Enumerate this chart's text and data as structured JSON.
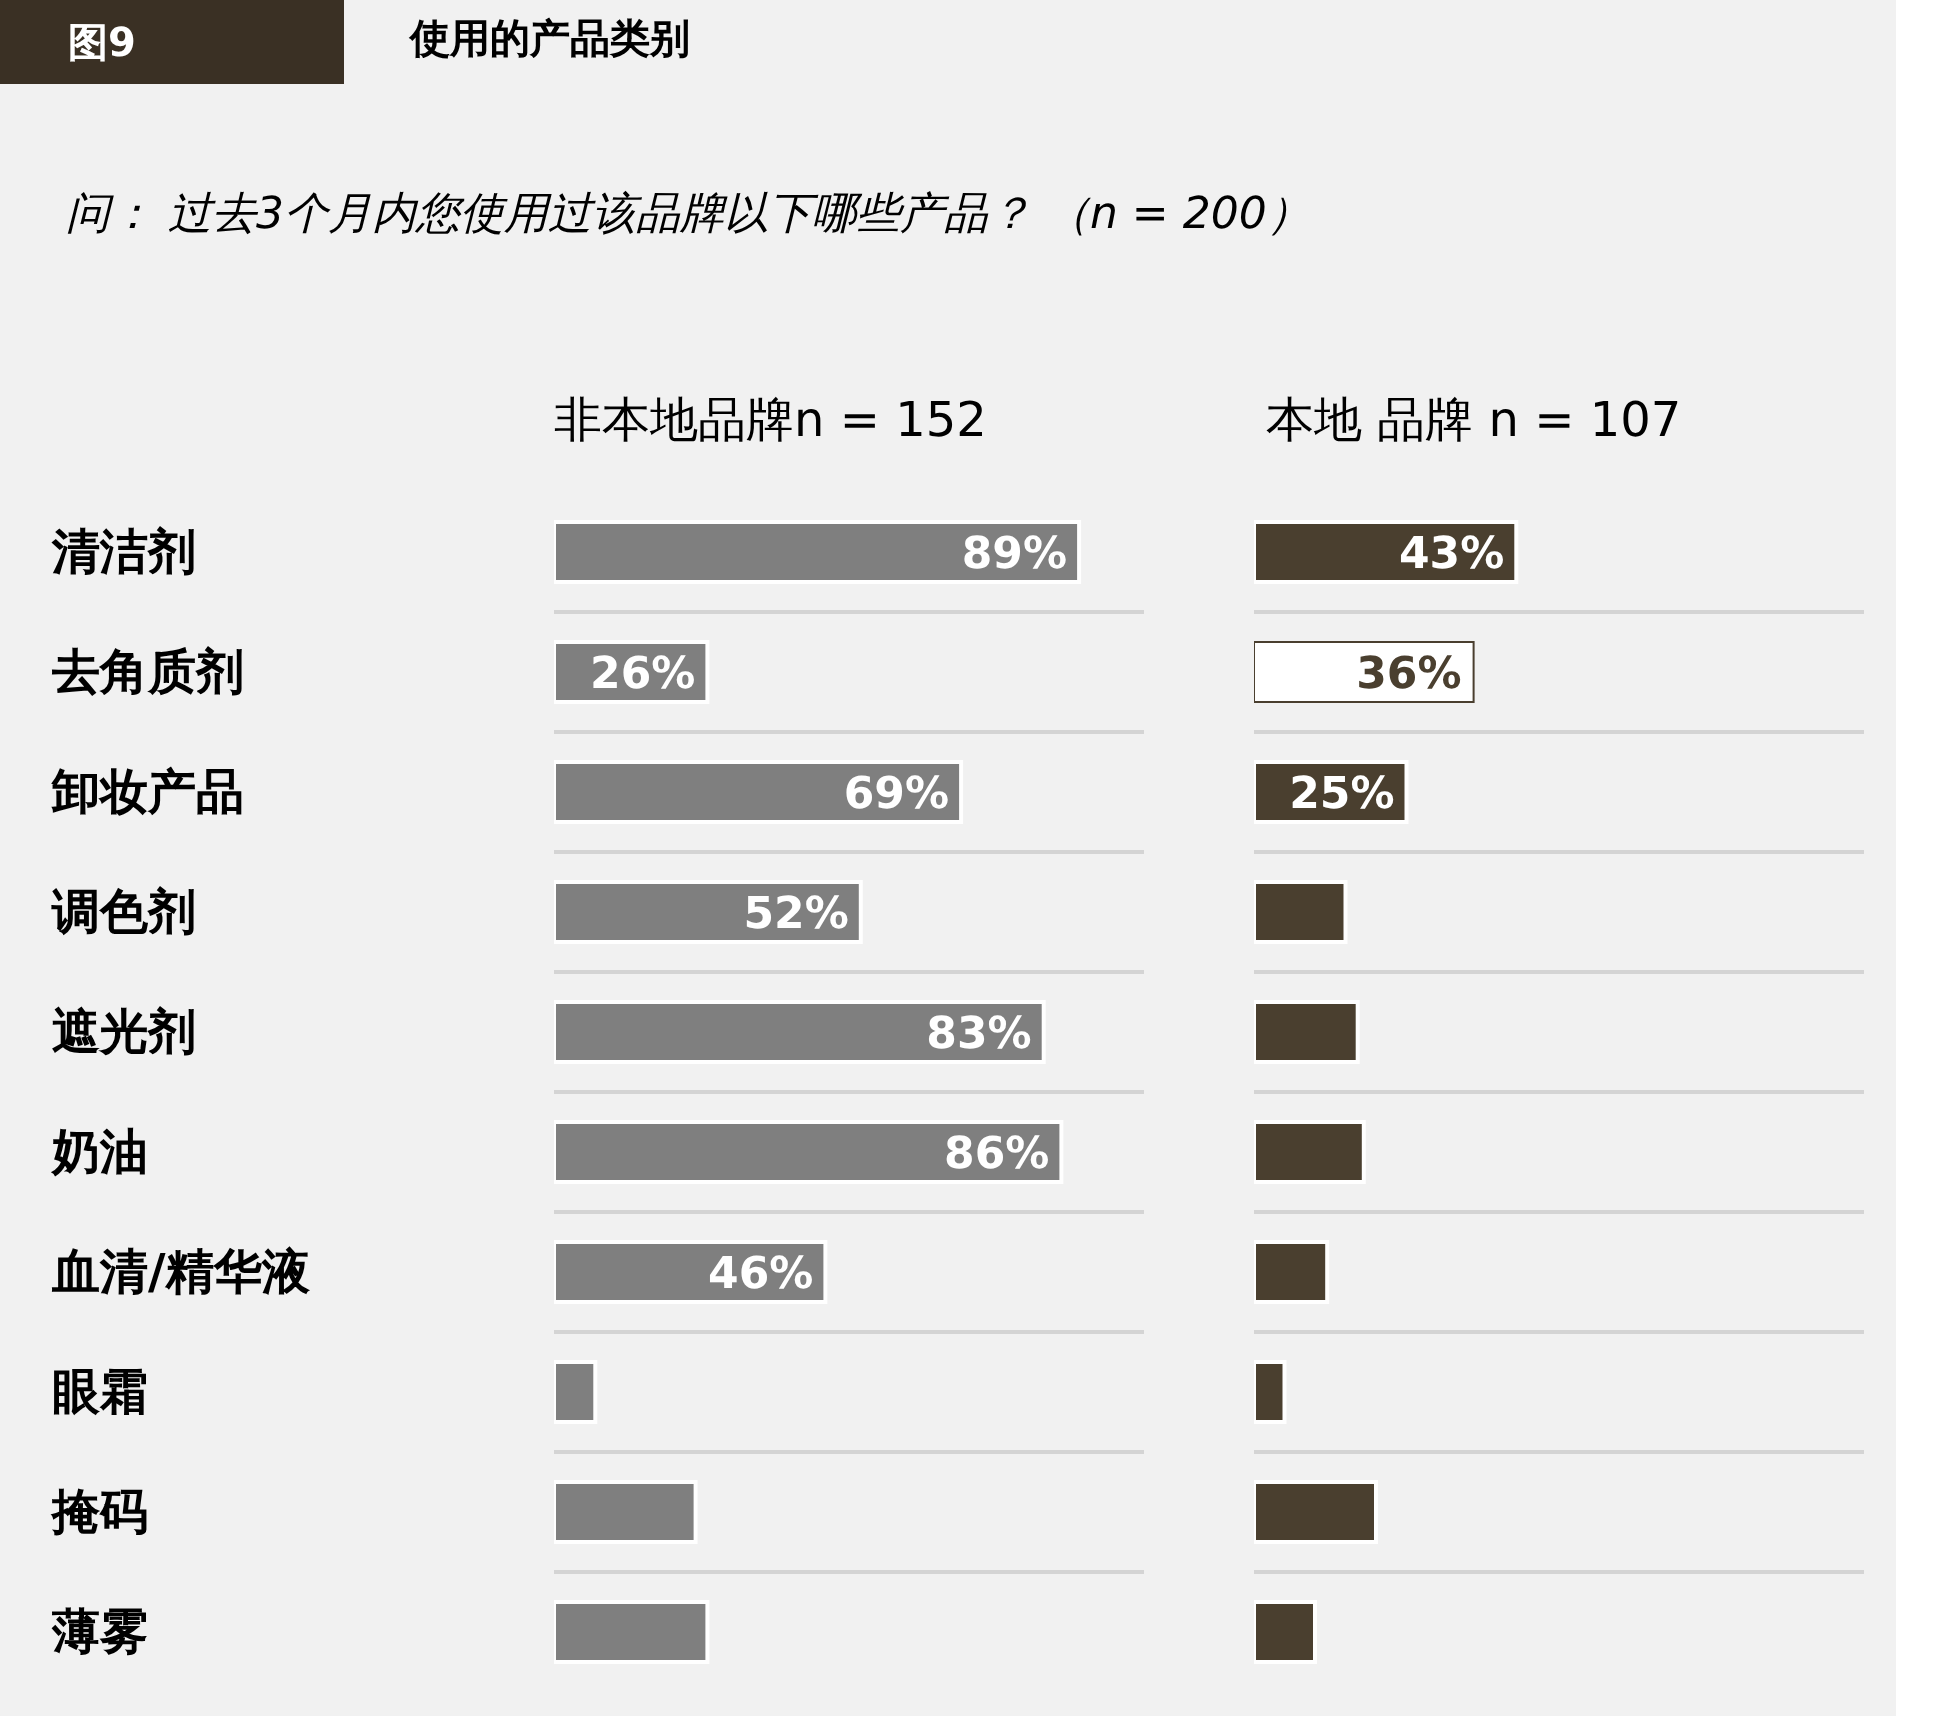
{
  "chart_data": [
    {
      "type": "bar",
      "orientation": "horizontal",
      "title": "使用的产品类别",
      "annotations": [
        "图9",
        "问： 过去3个月内您使用过该品牌以下哪些产品？ （n = 200）"
      ],
      "subtitle": "非本地品牌n = 152",
      "categories": [
        "清洁剂",
        "去角质剂",
        "卸妆产品",
        "调色剂",
        "遮光剂",
        "奶油",
        "血清/精华液",
        "眼霜",
        "掩码",
        "薄雾"
      ],
      "values": [
        89,
        26,
        69,
        52,
        83,
        86,
        46,
        7,
        24,
        26
      ],
      "colors": [
        "#7f7f7f",
        "#7f7f7f",
        "#7f7f7f",
        "#7f7f7f",
        "#7f7f7f",
        "#7f7f7f",
        "#7f7f7f",
        "#7f7f7f",
        "#7f7f7f",
        "#7f7f7f"
      ],
      "value_labels": [
        "89%",
        "26%",
        "69%",
        "52%",
        "83%",
        "86%",
        "46%",
        null,
        null,
        null
      ],
      "xlim": [
        0,
        100
      ],
      "grid": "y",
      "tick_labels": "y"
    },
    {
      "type": "bar",
      "orientation": "horizontal",
      "subtitle": "本地 品牌 n = 107",
      "categories": [
        null,
        null,
        null,
        null,
        null,
        null,
        null,
        null,
        null,
        null
      ],
      "values": [
        43,
        36,
        25,
        15,
        17,
        18,
        12,
        5,
        20,
        10
      ],
      "colors": [
        "#4a3f2f",
        "#ffffff",
        "#4a3f2f",
        "#4a3f2f",
        "#4a3f2f",
        "#4a3f2f",
        "#4a3f2f",
        "#4a3f2f",
        "#4a3f2f",
        "#4a3f2f"
      ],
      "value_labels": [
        "43%",
        "36%",
        "25%",
        null,
        null,
        null,
        null,
        null,
        null,
        null
      ],
      "xlim": [
        0,
        100
      ],
      "grid": "y",
      "tick_labels": false
    }
  ]
}
